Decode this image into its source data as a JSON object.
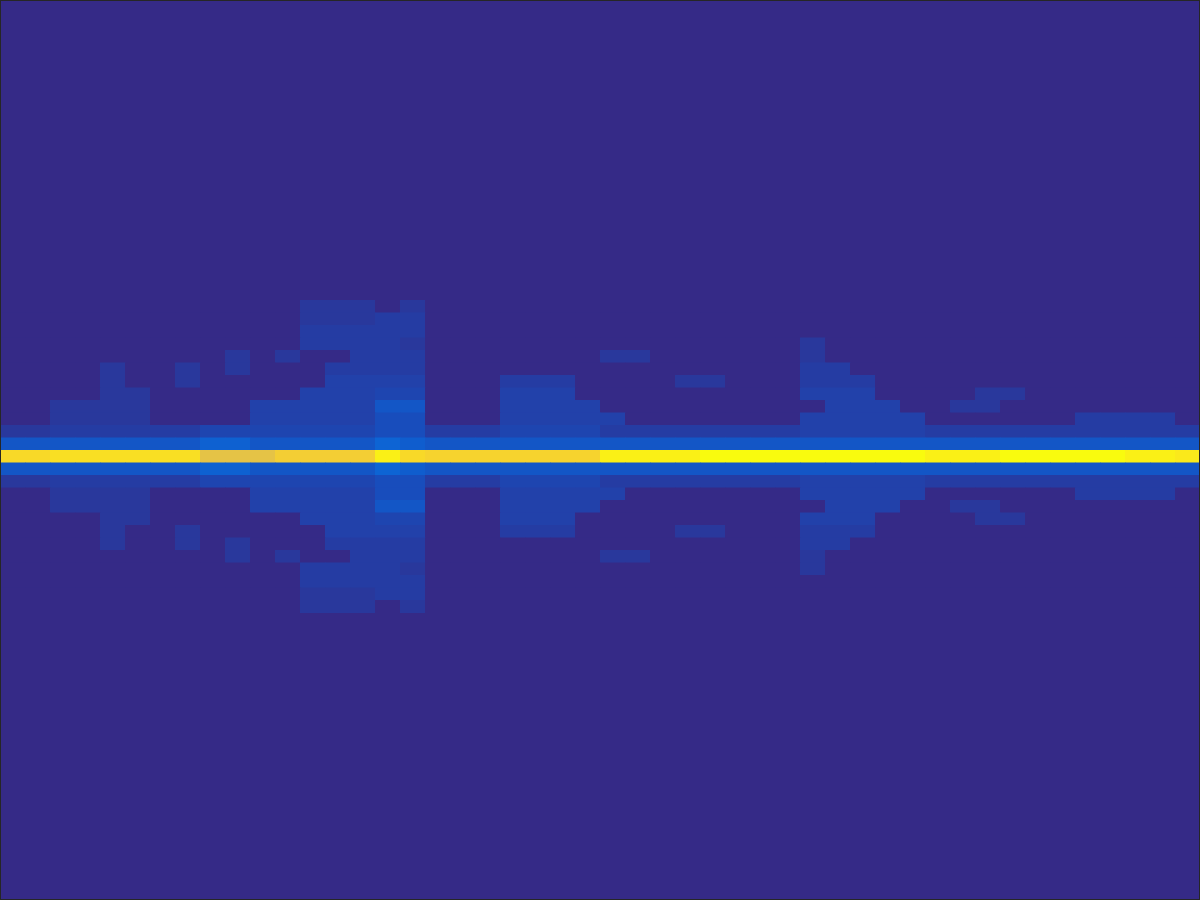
{
  "chart_data": {
    "type": "heatmap",
    "tick_labels": false,
    "xlim": [
      0,
      48
    ],
    "ylim": [
      0,
      72
    ],
    "clim": [
      0,
      1
    ],
    "y": [
      24,
      25,
      26,
      27,
      28,
      29,
      30,
      31,
      32,
      33,
      34,
      35,
      36,
      37,
      38,
      39,
      40,
      41,
      42,
      43,
      44,
      45,
      46,
      47,
      48
    ],
    "z": [
      [
        0,
        0,
        0,
        0,
        0,
        0,
        0,
        0,
        0,
        0,
        0,
        0,
        0.03,
        0.03,
        0.03,
        0,
        0.03,
        0,
        0,
        0,
        0,
        0,
        0,
        0,
        0,
        0,
        0,
        0,
        0,
        0,
        0,
        0,
        0,
        0,
        0,
        0,
        0,
        0,
        0,
        0,
        0,
        0,
        0,
        0,
        0,
        0,
        0,
        0
      ],
      [
        0,
        0,
        0,
        0,
        0,
        0,
        0,
        0,
        0,
        0,
        0,
        0,
        0.03,
        0.03,
        0.03,
        0.04,
        0.04,
        0,
        0,
        0,
        0,
        0,
        0,
        0,
        0,
        0,
        0,
        0,
        0,
        0,
        0,
        0,
        0,
        0,
        0,
        0,
        0,
        0,
        0,
        0,
        0,
        0,
        0,
        0,
        0,
        0,
        0,
        0
      ],
      [
        0,
        0,
        0,
        0,
        0,
        0,
        0,
        0,
        0,
        0,
        0,
        0,
        0.04,
        0.04,
        0.04,
        0.04,
        0.04,
        0,
        0,
        0,
        0,
        0,
        0,
        0,
        0,
        0,
        0,
        0,
        0,
        0,
        0,
        0,
        0,
        0,
        0,
        0,
        0,
        0,
        0,
        0,
        0,
        0,
        0,
        0,
        0,
        0,
        0,
        0
      ],
      [
        0,
        0,
        0,
        0,
        0,
        0,
        0,
        0,
        0,
        0,
        0,
        0,
        0.04,
        0.04,
        0.04,
        0.04,
        0.03,
        0,
        0,
        0,
        0,
        0,
        0,
        0,
        0,
        0,
        0,
        0,
        0,
        0,
        0,
        0,
        0.03,
        0,
        0,
        0,
        0,
        0,
        0,
        0,
        0,
        0,
        0,
        0,
        0,
        0,
        0,
        0
      ],
      [
        0,
        0,
        0,
        0,
        0,
        0,
        0,
        0,
        0,
        0.03,
        0,
        0.03,
        0,
        0,
        0.04,
        0.04,
        0.04,
        0,
        0,
        0,
        0,
        0,
        0,
        0,
        0.03,
        0.03,
        0,
        0,
        0,
        0,
        0,
        0,
        0.03,
        0,
        0,
        0,
        0,
        0,
        0,
        0,
        0,
        0,
        0,
        0,
        0,
        0,
        0,
        0
      ],
      [
        0,
        0,
        0,
        0,
        0.03,
        0,
        0,
        0.03,
        0,
        0.03,
        0,
        0,
        0,
        0.04,
        0.04,
        0.04,
        0.04,
        0,
        0,
        0,
        0,
        0,
        0,
        0,
        0,
        0,
        0,
        0,
        0,
        0,
        0,
        0,
        0.04,
        0.04,
        0,
        0,
        0,
        0,
        0,
        0,
        0,
        0,
        0,
        0,
        0,
        0,
        0,
        0
      ],
      [
        0,
        0,
        0,
        0,
        0.03,
        0,
        0,
        0.03,
        0,
        0,
        0,
        0,
        0,
        0.05,
        0.05,
        0.05,
        0.05,
        0,
        0,
        0,
        0.04,
        0.04,
        0.04,
        0,
        0,
        0,
        0,
        0.03,
        0.03,
        0,
        0,
        0,
        0.04,
        0.04,
        0.04,
        0,
        0,
        0,
        0,
        0,
        0,
        0,
        0,
        0,
        0,
        0,
        0,
        0
      ],
      [
        0,
        0,
        0,
        0,
        0.03,
        0.03,
        0,
        0,
        0,
        0,
        0,
        0,
        0.05,
        0.05,
        0.05,
        0.06,
        0.06,
        0,
        0,
        0,
        0.05,
        0.05,
        0.05,
        0,
        0,
        0,
        0,
        0,
        0,
        0,
        0,
        0,
        0.05,
        0.05,
        0.05,
        0,
        0,
        0,
        0,
        0.03,
        0.03,
        0,
        0,
        0,
        0,
        0,
        0,
        0
      ],
      [
        0,
        0,
        0.03,
        0.03,
        0.03,
        0.03,
        0,
        0,
        0,
        0,
        0.05,
        0.05,
        0.05,
        0.05,
        0.05,
        0.1,
        0.1,
        0,
        0,
        0,
        0.05,
        0.05,
        0.05,
        0.05,
        0,
        0,
        0,
        0,
        0,
        0,
        0,
        0,
        0,
        0.05,
        0.05,
        0.05,
        0,
        0,
        0.03,
        0.03,
        0,
        0,
        0,
        0,
        0,
        0,
        0,
        0
      ],
      [
        0,
        0,
        0.03,
        0.03,
        0.03,
        0.03,
        0,
        0,
        0,
        0,
        0.05,
        0.05,
        0.05,
        0.05,
        0.05,
        0.08,
        0.08,
        0,
        0,
        0,
        0.05,
        0.05,
        0.05,
        0.05,
        0.05,
        0,
        0,
        0,
        0,
        0,
        0,
        0,
        0.05,
        0.05,
        0.05,
        0.05,
        0.05,
        0,
        0,
        0,
        0,
        0,
        0,
        0.04,
        0.04,
        0.04,
        0.04,
        0
      ],
      [
        0.03,
        0.03,
        0.04,
        0.04,
        0.04,
        0.04,
        0.04,
        0.04,
        0.06,
        0.06,
        0.06,
        0.06,
        0.06,
        0.06,
        0.06,
        0.08,
        0.08,
        0.04,
        0.04,
        0.04,
        0.06,
        0.06,
        0.06,
        0.06,
        0.04,
        0.04,
        0.04,
        0.04,
        0.04,
        0.04,
        0.04,
        0.04,
        0.05,
        0.05,
        0.05,
        0.05,
        0.05,
        0.04,
        0.04,
        0.04,
        0.04,
        0.04,
        0.04,
        0.04,
        0.04,
        0.04,
        0.04,
        0.04
      ],
      [
        0.1,
        0.1,
        0.1,
        0.1,
        0.1,
        0.1,
        0.1,
        0.1,
        0.13,
        0.13,
        0.1,
        0.1,
        0.1,
        0.1,
        0.1,
        0.14,
        0.12,
        0.1,
        0.1,
        0.1,
        0.1,
        0.1,
        0.1,
        0.1,
        0.1,
        0.1,
        0.1,
        0.1,
        0.1,
        0.1,
        0.1,
        0.1,
        0.1,
        0.1,
        0.1,
        0.1,
        0.1,
        0.1,
        0.1,
        0.1,
        0.1,
        0.1,
        0.1,
        0.1,
        0.1,
        0.1,
        0.1,
        0.1
      ],
      [
        0.9,
        0.9,
        0.92,
        0.92,
        0.92,
        0.92,
        0.92,
        0.92,
        0.8,
        0.8,
        0.8,
        0.86,
        0.86,
        0.86,
        0.86,
        0.97,
        0.9,
        0.88,
        0.88,
        0.88,
        0.88,
        0.88,
        0.88,
        0.88,
        0.97,
        0.97,
        0.97,
        0.97,
        1,
        1,
        1,
        1,
        1,
        1,
        1,
        1,
        1,
        0.97,
        0.97,
        0.97,
        1,
        1,
        1,
        1,
        1,
        0.97,
        0.97,
        0.95
      ],
      [
        0.1,
        0.1,
        0.1,
        0.1,
        0.1,
        0.1,
        0.1,
        0.1,
        0.13,
        0.13,
        0.1,
        0.1,
        0.1,
        0.1,
        0.1,
        0.14,
        0.12,
        0.1,
        0.1,
        0.1,
        0.1,
        0.1,
        0.1,
        0.1,
        0.1,
        0.1,
        0.1,
        0.1,
        0.1,
        0.1,
        0.1,
        0.1,
        0.1,
        0.1,
        0.1,
        0.1,
        0.1,
        0.1,
        0.1,
        0.1,
        0.1,
        0.1,
        0.1,
        0.1,
        0.1,
        0.1,
        0.1,
        0.1
      ],
      [
        0.03,
        0.03,
        0.04,
        0.04,
        0.04,
        0.04,
        0.04,
        0.04,
        0.06,
        0.06,
        0.06,
        0.06,
        0.06,
        0.06,
        0.06,
        0.08,
        0.08,
        0.04,
        0.04,
        0.04,
        0.06,
        0.06,
        0.06,
        0.06,
        0.04,
        0.04,
        0.04,
        0.04,
        0.04,
        0.04,
        0.04,
        0.04,
        0.05,
        0.05,
        0.05,
        0.05,
        0.05,
        0.04,
        0.04,
        0.04,
        0.04,
        0.04,
        0.04,
        0.04,
        0.04,
        0.04,
        0.04,
        0.04
      ],
      [
        0,
        0,
        0.03,
        0.03,
        0.03,
        0.03,
        0,
        0,
        0,
        0,
        0.05,
        0.05,
        0.05,
        0.05,
        0.05,
        0.08,
        0.08,
        0,
        0,
        0,
        0.05,
        0.05,
        0.05,
        0.05,
        0.05,
        0,
        0,
        0,
        0,
        0,
        0,
        0,
        0.05,
        0.05,
        0.05,
        0.05,
        0.05,
        0,
        0,
        0,
        0,
        0,
        0,
        0.04,
        0.04,
        0.04,
        0.04,
        0
      ],
      [
        0,
        0,
        0.03,
        0.03,
        0.03,
        0.03,
        0,
        0,
        0,
        0,
        0.05,
        0.05,
        0.05,
        0.05,
        0.05,
        0.1,
        0.1,
        0,
        0,
        0,
        0.05,
        0.05,
        0.05,
        0.05,
        0,
        0,
        0,
        0,
        0,
        0,
        0,
        0,
        0,
        0.05,
        0.05,
        0.05,
        0,
        0,
        0.03,
        0.03,
        0,
        0,
        0,
        0,
        0,
        0,
        0,
        0
      ],
      [
        0,
        0,
        0,
        0,
        0.03,
        0.03,
        0,
        0,
        0,
        0,
        0,
        0,
        0.05,
        0.05,
        0.05,
        0.06,
        0.06,
        0,
        0,
        0,
        0.05,
        0.05,
        0.05,
        0,
        0,
        0,
        0,
        0,
        0,
        0,
        0,
        0,
        0.05,
        0.05,
        0.05,
        0,
        0,
        0,
        0,
        0.03,
        0.03,
        0,
        0,
        0,
        0,
        0,
        0,
        0
      ],
      [
        0,
        0,
        0,
        0,
        0.03,
        0,
        0,
        0.03,
        0,
        0,
        0,
        0,
        0,
        0.05,
        0.05,
        0.05,
        0.05,
        0,
        0,
        0,
        0.04,
        0.04,
        0.04,
        0,
        0,
        0,
        0,
        0.03,
        0.03,
        0,
        0,
        0,
        0.04,
        0.04,
        0.04,
        0,
        0,
        0,
        0,
        0,
        0,
        0,
        0,
        0,
        0,
        0,
        0,
        0
      ],
      [
        0,
        0,
        0,
        0,
        0.03,
        0,
        0,
        0.03,
        0,
        0.03,
        0,
        0,
        0,
        0.04,
        0.04,
        0.04,
        0.04,
        0,
        0,
        0,
        0,
        0,
        0,
        0,
        0,
        0,
        0,
        0,
        0,
        0,
        0,
        0,
        0.04,
        0.04,
        0,
        0,
        0,
        0,
        0,
        0,
        0,
        0,
        0,
        0,
        0,
        0,
        0,
        0
      ],
      [
        0,
        0,
        0,
        0,
        0,
        0,
        0,
        0,
        0,
        0.03,
        0,
        0.03,
        0,
        0,
        0.04,
        0.04,
        0.04,
        0,
        0,
        0,
        0,
        0,
        0,
        0,
        0.03,
        0.03,
        0,
        0,
        0,
        0,
        0,
        0,
        0.03,
        0,
        0,
        0,
        0,
        0,
        0,
        0,
        0,
        0,
        0,
        0,
        0,
        0,
        0,
        0
      ],
      [
        0,
        0,
        0,
        0,
        0,
        0,
        0,
        0,
        0,
        0,
        0,
        0,
        0.04,
        0.04,
        0.04,
        0.04,
        0.03,
        0,
        0,
        0,
        0,
        0,
        0,
        0,
        0,
        0,
        0,
        0,
        0,
        0,
        0,
        0,
        0.03,
        0,
        0,
        0,
        0,
        0,
        0,
        0,
        0,
        0,
        0,
        0,
        0,
        0,
        0,
        0
      ],
      [
        0,
        0,
        0,
        0,
        0,
        0,
        0,
        0,
        0,
        0,
        0,
        0,
        0.04,
        0.04,
        0.04,
        0.04,
        0.04,
        0,
        0,
        0,
        0,
        0,
        0,
        0,
        0,
        0,
        0,
        0,
        0,
        0,
        0,
        0,
        0,
        0,
        0,
        0,
        0,
        0,
        0,
        0,
        0,
        0,
        0,
        0,
        0,
        0,
        0,
        0
      ],
      [
        0,
        0,
        0,
        0,
        0,
        0,
        0,
        0,
        0,
        0,
        0,
        0,
        0.03,
        0.03,
        0.03,
        0.04,
        0.04,
        0,
        0,
        0,
        0,
        0,
        0,
        0,
        0,
        0,
        0,
        0,
        0,
        0,
        0,
        0,
        0,
        0,
        0,
        0,
        0,
        0,
        0,
        0,
        0,
        0,
        0,
        0,
        0,
        0,
        0,
        0
      ],
      [
        0,
        0,
        0,
        0,
        0,
        0,
        0,
        0,
        0,
        0,
        0,
        0,
        0.03,
        0.03,
        0.03,
        0,
        0.03,
        0,
        0,
        0,
        0,
        0,
        0,
        0,
        0,
        0,
        0,
        0,
        0,
        0,
        0,
        0,
        0,
        0,
        0,
        0,
        0,
        0,
        0,
        0,
        0,
        0,
        0,
        0,
        0,
        0,
        0,
        0
      ]
    ]
  }
}
